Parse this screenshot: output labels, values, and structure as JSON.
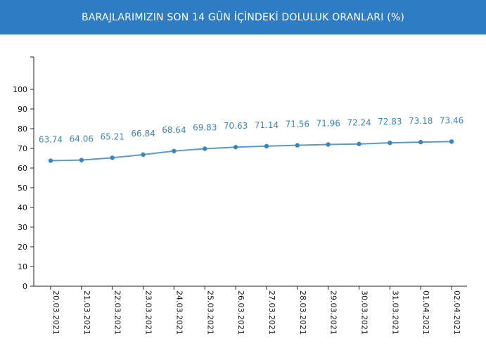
{
  "header": {
    "title": "BARAJLARIMIZIN SON 14 GÜN İÇİNDEKİ DOLULUK ORANLARI (%)"
  },
  "colors": {
    "header_bg": "#2e7cc4",
    "header_text": "#ffffff",
    "series_line": "#5b9bc8",
    "series_marker": "#3a86bf",
    "data_label": "#3a86bf",
    "axis": "#222222"
  },
  "chart_data": {
    "type": "line",
    "title": "BARAJLARIMIZIN SON 14 GÜN İÇİNDEKİ DOLULUK ORANLARI (%)",
    "categories": [
      "20.03.2021",
      "21.03.2021",
      "22.03.2021",
      "23.03.2021",
      "24.03.2021",
      "25.03.2021",
      "26.03.2021",
      "27.03.2021",
      "28.03.2021",
      "29.03.2021",
      "30.03.2021",
      "31.03.2021",
      "01.04.2021",
      "02.04.2021"
    ],
    "series": [
      {
        "values": [
          63.74,
          64.06,
          65.21,
          66.84,
          68.64,
          69.83,
          70.63,
          71.14,
          71.56,
          71.96,
          72.24,
          72.83,
          73.18,
          73.46
        ],
        "labels": [
          "63.74",
          "64.06",
          "65.21",
          "66.84",
          "68.64",
          "69.83",
          "70.63",
          "71.14",
          "71.56",
          "71.96",
          "72.24",
          "72.83",
          "73.18",
          "73.46"
        ]
      }
    ],
    "yticks": [
      0,
      10,
      20,
      30,
      40,
      50,
      60,
      70,
      80,
      90,
      100
    ],
    "ytick_labels": [
      "0",
      "10",
      "20",
      "30",
      "40",
      "50",
      "60",
      "70",
      "80",
      "90",
      "100"
    ],
    "ylim": [
      0,
      100
    ],
    "xlabel": "",
    "ylabel": "",
    "grid": false,
    "legend": "none"
  }
}
